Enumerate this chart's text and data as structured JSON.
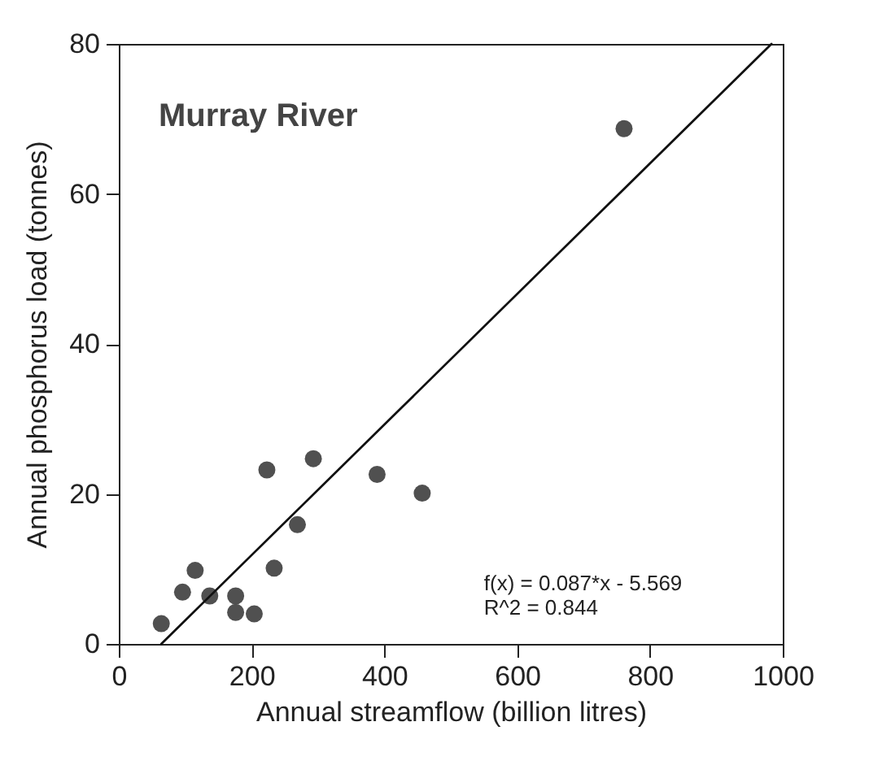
{
  "chart_data": {
    "type": "scatter",
    "xlabel": "Annual streamflow (billion litres)",
    "ylabel": "Annual phosphorus load (tonnes)",
    "xlim": [
      0,
      1000
    ],
    "xticks": [
      0,
      200,
      400,
      600,
      800,
      1000
    ],
    "ylim": [
      0,
      80
    ],
    "yticks": [
      0,
      20,
      40,
      60,
      80
    ],
    "grid": false,
    "marker": "circle",
    "series": [
      {
        "color": "#505050",
        "x": [
          761,
          64,
          96,
          115,
          137,
          176,
          176,
          204,
          223,
          234,
          269,
          293,
          389,
          457
        ],
        "values": [
          68.7,
          2.7,
          6.9,
          9.8,
          6.4,
          6.4,
          4.2,
          4.0,
          23.2,
          10.1,
          15.9,
          24.7,
          22.6,
          20.1
        ]
      },
      {
        "type": "line",
        "color": "#111111",
        "line_style": "solid",
        "marker": "none",
        "x": [
          64,
          983
        ],
        "values": [
          0,
          80
        ]
      }
    ],
    "annotations": [
      "Murray River",
      "f(x) = 0.087*x - 5.569",
      "R^2 = 0.844"
    ]
  }
}
